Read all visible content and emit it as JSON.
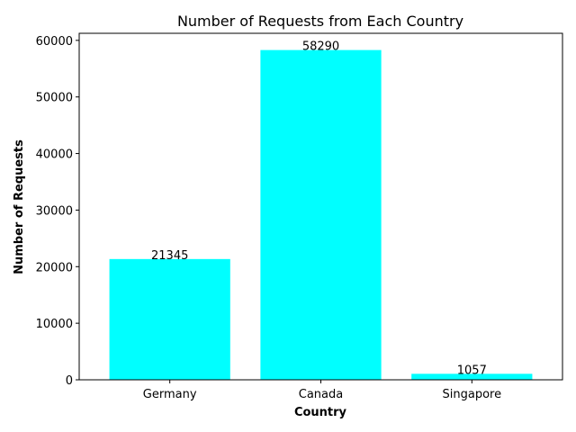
{
  "chart_data": {
    "type": "bar",
    "title": "Number of Requests from Each Country",
    "xlabel": "Country",
    "ylabel": "Number of Requests",
    "categories": [
      "Germany",
      "Canada",
      "Singapore"
    ],
    "values": [
      21345,
      58290,
      1057
    ],
    "data_labels": [
      "21345",
      "58290",
      "1057"
    ],
    "ylim": [
      0,
      61250
    ],
    "yticks": [
      0,
      10000,
      20000,
      30000,
      40000,
      50000,
      60000
    ],
    "ytick_labels": [
      "0",
      "10000",
      "20000",
      "30000",
      "40000",
      "50000",
      "60000"
    ],
    "grid": false,
    "bar_color": "#00ffff"
  }
}
